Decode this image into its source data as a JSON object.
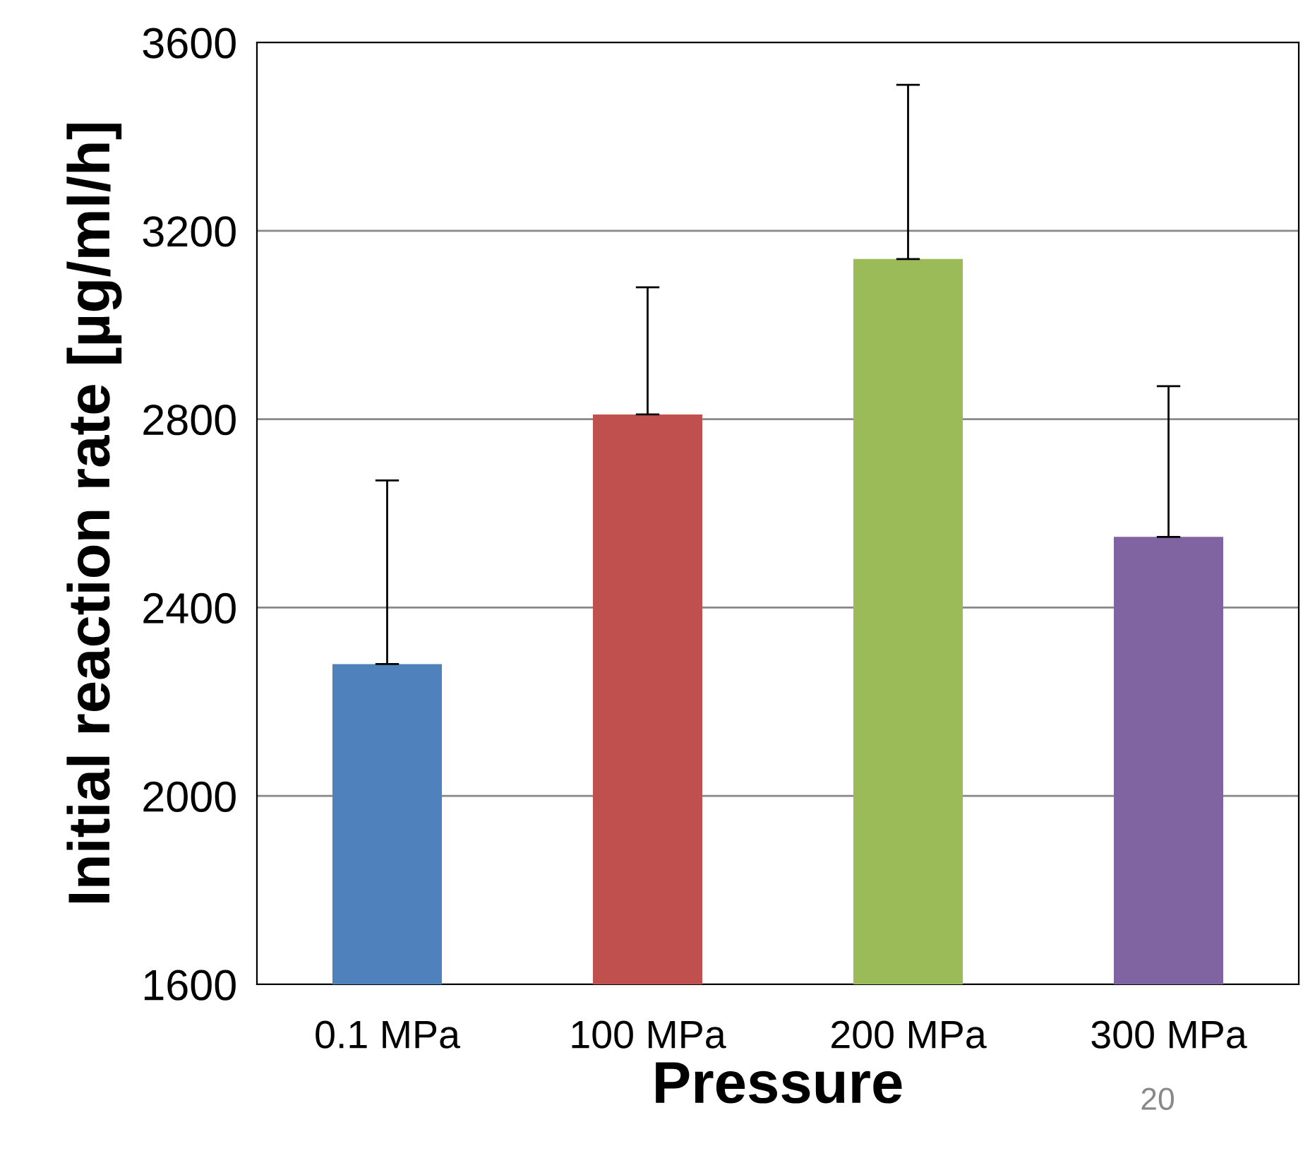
{
  "chart_data": {
    "type": "bar",
    "xlabel": "Pressure",
    "ylabel": "Initial reaction rate [µg/ml/h]",
    "categories": [
      "0.1 MPa",
      "100 MPa",
      "200 MPa",
      "300 MPa"
    ],
    "values": [
      2280,
      2810,
      3140,
      2550
    ],
    "colors": [
      "#4f81bd",
      "#c0504d",
      "#9bbb59",
      "#8064a2"
    ],
    "errors": [
      [
        2280,
        2670
      ],
      [
        2810,
        3080
      ],
      [
        3140,
        3510
      ],
      [
        2550,
        2870
      ]
    ],
    "ylim": [
      1600,
      3600
    ],
    "yticks": [
      1600,
      2000,
      2400,
      2800,
      3200,
      3600
    ],
    "grid": "y",
    "annotations": [
      "20"
    ]
  }
}
